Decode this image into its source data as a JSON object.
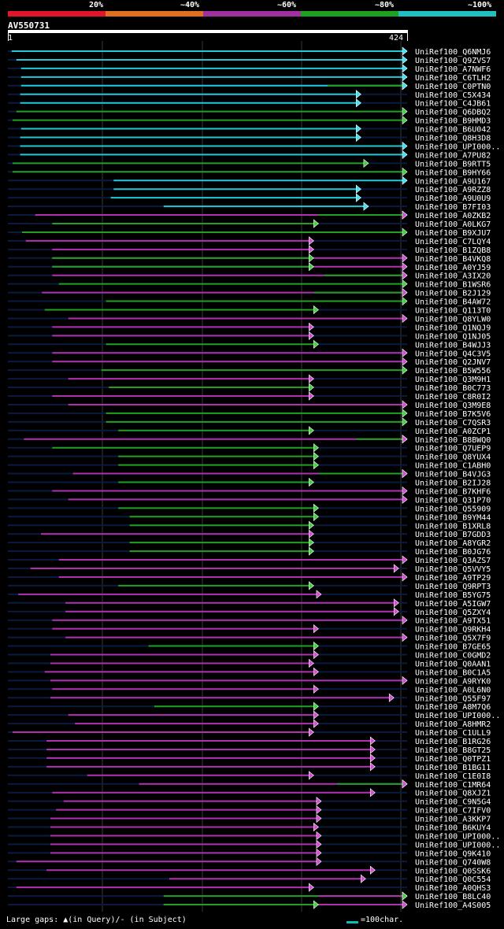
{
  "scale": {
    "segments": [
      {
        "color": "#e0162b",
        "label": "20%"
      },
      {
        "color": "#e07020",
        "label": "~40%"
      },
      {
        "color": "#a030a0",
        "label": "~60%"
      },
      {
        "color": "#20a020",
        "label": "~80%"
      },
      {
        "color": "#20c0c0",
        "label": "~100%"
      }
    ]
  },
  "query": {
    "id": "AV550731",
    "start": "1",
    "end": "424",
    "length": 424
  },
  "legend": {
    "gaps": "Large gaps: ▲(in Query)/- (in Subject)",
    "scale_note": "=100char."
  },
  "hits": [
    {
      "name": "UniRef100_Q6NMJ6",
      "s": 5,
      "e": 424,
      "c": "cyan",
      "cyan2": 0
    },
    {
      "name": "UniRef100_Q9ZVS7",
      "s": 10,
      "e": 424,
      "c": "cyan"
    },
    {
      "name": "UniRef100_A7NWF6",
      "s": 15,
      "e": 424,
      "c": "cyan"
    },
    {
      "name": "UniRef100_C6TLH2",
      "s": 15,
      "e": 424,
      "c": "cyan"
    },
    {
      "name": "UniRef100_C0PTN0",
      "s": 15,
      "e": 424,
      "c": "cyan",
      "g": [
        340,
        424
      ]
    },
    {
      "name": "UniRef100_C5X434",
      "s": 14,
      "e": 375,
      "c": "cyan"
    },
    {
      "name": "UniRef100_C4JB61",
      "s": 14,
      "e": 375,
      "c": "cyan"
    },
    {
      "name": "UniRef100_Q6DBQ2",
      "s": 10,
      "e": 424,
      "c": "green"
    },
    {
      "name": "UniRef100_B9HMD3",
      "s": 6,
      "e": 424,
      "c": "green"
    },
    {
      "name": "UniRef100_B6U042",
      "s": 15,
      "e": 375,
      "c": "cyan"
    },
    {
      "name": "UniRef100_Q8H3D8",
      "s": 14,
      "e": 375,
      "c": "cyan"
    },
    {
      "name": "UniRef100_UPI000..",
      "s": 14,
      "e": 424,
      "c": "cyan"
    },
    {
      "name": "UniRef100_A7PU82",
      "s": 14,
      "e": 424,
      "c": "cyan"
    },
    {
      "name": "UniRef100_B9RTT5",
      "s": 6,
      "e": 383,
      "c": "green"
    },
    {
      "name": "UniRef100_B9HY66",
      "s": 6,
      "e": 424,
      "c": "green"
    },
    {
      "name": "UniRef100_A9U167",
      "s": 113,
      "e": 424,
      "c": "cyan"
    },
    {
      "name": "UniRef100_A9RZZ8",
      "s": 113,
      "e": 375,
      "c": "cyan"
    },
    {
      "name": "UniRef100_A9U0U9",
      "s": 110,
      "e": 375,
      "c": "cyan"
    },
    {
      "name": "UniRef100_B7FI03",
      "s": 166,
      "e": 383,
      "c": "cyan"
    },
    {
      "name": "UniRef100_A0ZKB2",
      "s": 30,
      "e": 424,
      "c": "magenta",
      "g": [
        330,
        424
      ]
    },
    {
      "name": "UniRef100_A0LKG7",
      "s": 48,
      "e": 330,
      "c": "green"
    },
    {
      "name": "UniRef100_B9XJU7",
      "s": 16,
      "e": 424,
      "c": "green"
    },
    {
      "name": "UniRef100_C7LQY4",
      "s": 20,
      "e": 325,
      "c": "magenta"
    },
    {
      "name": "UniRef100_B1ZQB8",
      "s": 48,
      "e": 325,
      "c": "magenta"
    },
    {
      "name": "UniRef100_B4VKQ8",
      "s": 48,
      "e": 424,
      "c": "magenta",
      "g": [
        48,
        325
      ]
    },
    {
      "name": "UniRef100_A0YJ59",
      "s": 48,
      "e": 424,
      "c": "magenta",
      "g": [
        48,
        325
      ]
    },
    {
      "name": "UniRef100_A3IX20",
      "s": 48,
      "e": 424,
      "c": "magenta",
      "g": [
        336,
        424
      ]
    },
    {
      "name": "UniRef100_B1WSR6",
      "s": 55,
      "e": 424,
      "c": "green"
    },
    {
      "name": "UniRef100_B2J129",
      "s": 37,
      "e": 424,
      "c": "magenta",
      "g": [
        325,
        424
      ]
    },
    {
      "name": "UniRef100_B4AW72",
      "s": 105,
      "e": 424,
      "c": "green"
    },
    {
      "name": "UniRef100_Q113T0",
      "s": 40,
      "e": 330,
      "c": "green"
    },
    {
      "name": "UniRef100_Q8YLW0",
      "s": 65,
      "e": 424,
      "c": "magenta"
    },
    {
      "name": "UniRef100_Q1NQJ9",
      "s": 48,
      "e": 325,
      "c": "magenta"
    },
    {
      "name": "UniRef100_Q1NJ05",
      "s": 48,
      "e": 325,
      "c": "magenta"
    },
    {
      "name": "UniRef100_B4WJJ3",
      "s": 105,
      "e": 330,
      "c": "green"
    },
    {
      "name": "UniRef100_Q4C3V5",
      "s": 48,
      "e": 424,
      "c": "magenta"
    },
    {
      "name": "UniRef100_Q2JNV7",
      "s": 48,
      "e": 424,
      "c": "magenta"
    },
    {
      "name": "UniRef100_B5W556",
      "s": 100,
      "e": 424,
      "c": "green"
    },
    {
      "name": "UniRef100_Q3M9H1",
      "s": 65,
      "e": 325,
      "c": "magenta"
    },
    {
      "name": "UniRef100_B0C773",
      "s": 108,
      "e": 325,
      "c": "green"
    },
    {
      "name": "UniRef100_C8R0I2",
      "s": 48,
      "e": 325,
      "c": "magenta"
    },
    {
      "name": "UniRef100_Q3M9E8",
      "s": 65,
      "e": 424,
      "c": "magenta"
    },
    {
      "name": "UniRef100_B7K5V6",
      "s": 105,
      "e": 424,
      "c": "green"
    },
    {
      "name": "UniRef100_C7QSR3",
      "s": 105,
      "e": 424,
      "c": "green"
    },
    {
      "name": "UniRef100_A0ZCP1",
      "s": 118,
      "e": 325,
      "c": "green"
    },
    {
      "name": "UniRef100_B8BWQ0",
      "s": 18,
      "e": 424,
      "c": "magenta",
      "g": [
        370,
        424
      ]
    },
    {
      "name": "UniRef100_Q7UEP9",
      "s": 48,
      "e": 330,
      "c": "green"
    },
    {
      "name": "UniRef100_Q8YUX4",
      "s": 118,
      "e": 330,
      "c": "green"
    },
    {
      "name": "UniRef100_C1ABH0",
      "s": 118,
      "e": 330,
      "c": "green"
    },
    {
      "name": "UniRef100_B4VJG3",
      "s": 70,
      "e": 424,
      "c": "magenta",
      "g": [
        330,
        424
      ]
    },
    {
      "name": "UniRef100_B2IJ28",
      "s": 118,
      "e": 325,
      "c": "green"
    },
    {
      "name": "UniRef100_B7KHF6",
      "s": 48,
      "e": 424,
      "c": "magenta"
    },
    {
      "name": "UniRef100_Q31P70",
      "s": 65,
      "e": 424,
      "c": "magenta"
    },
    {
      "name": "UniRef100_Q55909",
      "s": 118,
      "e": 330,
      "c": "green"
    },
    {
      "name": "UniRef100_B9YM44",
      "s": 130,
      "e": 330,
      "c": "green"
    },
    {
      "name": "UniRef100_B1XRL8",
      "s": 130,
      "e": 325,
      "c": "green"
    },
    {
      "name": "UniRef100_B7GDD3",
      "s": 36,
      "e": 325,
      "c": "magenta"
    },
    {
      "name": "UniRef100_A8YGR2",
      "s": 130,
      "e": 325,
      "c": "green"
    },
    {
      "name": "UniRef100_B0JG76",
      "s": 130,
      "e": 325,
      "c": "green"
    },
    {
      "name": "UniRef100_Q3AZS7",
      "s": 55,
      "e": 424,
      "c": "magenta"
    },
    {
      "name": "UniRef100_Q5VVY5",
      "s": 25,
      "e": 415,
      "c": "magenta"
    },
    {
      "name": "UniRef100_A9TP29",
      "s": 55,
      "e": 424,
      "c": "magenta"
    },
    {
      "name": "UniRef100_Q9RPT3",
      "s": 118,
      "e": 325,
      "c": "green"
    },
    {
      "name": "UniRef100_B5YG75",
      "s": 12,
      "e": 333,
      "c": "magenta"
    },
    {
      "name": "UniRef100_A5IGW7",
      "s": 62,
      "e": 415,
      "c": "magenta"
    },
    {
      "name": "UniRef100_Q5ZXY4",
      "s": 62,
      "e": 415,
      "c": "magenta"
    },
    {
      "name": "UniRef100_A9TX51",
      "s": 48,
      "e": 424,
      "c": "magenta"
    },
    {
      "name": "UniRef100_Q9RKH4",
      "s": 48,
      "e": 330,
      "c": "magenta"
    },
    {
      "name": "UniRef100_Q5X7F9",
      "s": 62,
      "e": 424,
      "c": "magenta"
    },
    {
      "name": "UniRef100_B7GE65",
      "s": 150,
      "e": 330,
      "c": "green"
    },
    {
      "name": "UniRef100_C0GMD2",
      "s": 46,
      "e": 330,
      "c": "magenta"
    },
    {
      "name": "UniRef100_Q0AAN1",
      "s": 46,
      "e": 325,
      "c": "magenta"
    },
    {
      "name": "UniRef100_B0C1A5",
      "s": 40,
      "e": 330,
      "c": "magenta"
    },
    {
      "name": "UniRef100_A9RYK0",
      "s": 46,
      "e": 424,
      "c": "magenta"
    },
    {
      "name": "UniRef100_A0L6N0",
      "s": 48,
      "e": 330,
      "c": "magenta"
    },
    {
      "name": "UniRef100_Q55F97",
      "s": 46,
      "e": 410,
      "c": "magenta"
    },
    {
      "name": "UniRef100_A8M7Q6",
      "s": 156,
      "e": 330,
      "c": "green"
    },
    {
      "name": "UniRef100_UPI000..",
      "s": 65,
      "e": 330,
      "c": "magenta"
    },
    {
      "name": "UniRef100_A8HMR2",
      "s": 72,
      "e": 330,
      "c": "magenta"
    },
    {
      "name": "UniRef100_C1ULL9",
      "s": 6,
      "e": 325,
      "c": "magenta"
    },
    {
      "name": "UniRef100_B1RG26",
      "s": 42,
      "e": 390,
      "c": "magenta"
    },
    {
      "name": "UniRef100_B8GT25",
      "s": 42,
      "e": 390,
      "c": "magenta"
    },
    {
      "name": "UniRef100_Q0TPZ1",
      "s": 42,
      "e": 390,
      "c": "magenta"
    },
    {
      "name": "UniRef100_B1BG11",
      "s": 42,
      "e": 390,
      "c": "magenta"
    },
    {
      "name": "UniRef100_C1E0I8",
      "s": 85,
      "e": 325,
      "c": "magenta"
    },
    {
      "name": "UniRef100_C1MR64",
      "s": 140,
      "e": 424,
      "c": "magenta",
      "g": [
        350,
        424
      ]
    },
    {
      "name": "UniRef100_Q8XJZ1",
      "s": 48,
      "e": 390,
      "c": "magenta"
    },
    {
      "name": "UniRef100_C9N5G4",
      "s": 60,
      "e": 333,
      "c": "magenta"
    },
    {
      "name": "UniRef100_C7IFV0",
      "s": 52,
      "e": 333,
      "c": "magenta"
    },
    {
      "name": "UniRef100_A3KKP7",
      "s": 46,
      "e": 333,
      "c": "magenta"
    },
    {
      "name": "UniRef100_B6KUY4",
      "s": 46,
      "e": 330,
      "c": "magenta"
    },
    {
      "name": "UniRef100_UPI000..",
      "s": 46,
      "e": 333,
      "c": "magenta"
    },
    {
      "name": "UniRef100_UPI000..",
      "s": 46,
      "e": 333,
      "c": "magenta"
    },
    {
      "name": "UniRef100_Q9K410",
      "s": 46,
      "e": 333,
      "c": "magenta"
    },
    {
      "name": "UniRef100_Q740W8",
      "s": 10,
      "e": 333,
      "c": "magenta"
    },
    {
      "name": "UniRef100_Q0SSK6",
      "s": 42,
      "e": 390,
      "c": "magenta"
    },
    {
      "name": "UniRef100_Q0C554",
      "s": 172,
      "e": 380,
      "c": "magenta"
    },
    {
      "name": "UniRef100_A0QHS3",
      "s": 10,
      "e": 325,
      "c": "magenta"
    },
    {
      "name": "UniRef100_B8LC40",
      "s": 166,
      "e": 424,
      "c": "green",
      "g2": [
        330,
        424
      ]
    },
    {
      "name": "UniRef100_A4S005",
      "s": 166,
      "e": 424,
      "c": "magenta",
      "gfirst": [
        166,
        330
      ]
    }
  ]
}
